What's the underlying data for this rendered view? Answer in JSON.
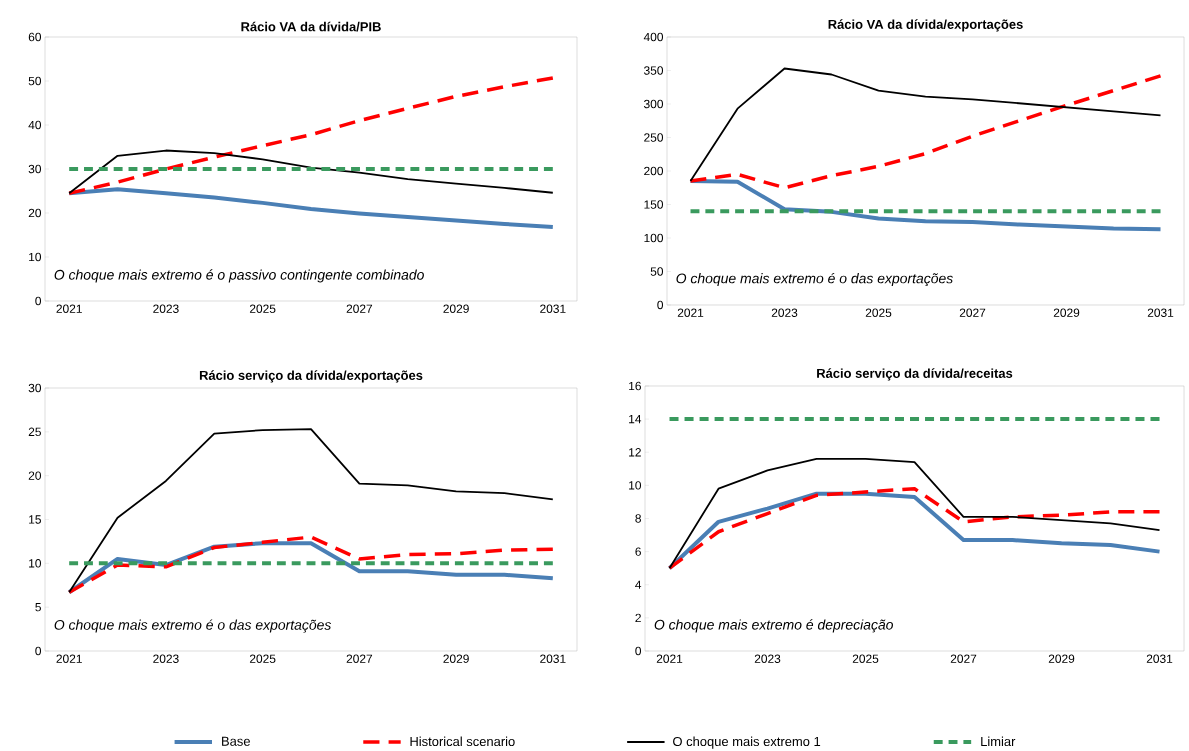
{
  "chart_data": [
    {
      "type": "line",
      "title": "Rácio VA da dívida/PIB",
      "categories": [
        "2021",
        null,
        "2023",
        null,
        "2025",
        null,
        "2027",
        null,
        "2029",
        null,
        "2031"
      ],
      "ylim": [
        0,
        60
      ],
      "yticks": [
        0,
        10,
        20,
        30,
        40,
        50,
        60
      ],
      "grid": false,
      "legend": "bottom",
      "annotations": [
        "O choque mais extremo é o passivo contingente combinado"
      ],
      "series": [
        {
          "name": "Base",
          "color": "#4a7fb5",
          "line_style": "solid",
          "values": [
            24.5,
            25.4,
            24.5,
            23.5,
            22.3,
            20.9,
            19.9,
            19.1,
            18.3,
            17.5,
            16.8
          ]
        },
        {
          "name": "Historical scenario",
          "color": "#ff0000",
          "line_style": "dashed",
          "values": [
            24.5,
            27,
            30,
            32.7,
            35.3,
            37.8,
            41,
            43.8,
            46.5,
            48.7,
            50.7
          ]
        },
        {
          "name": "O choque mais extremo 1",
          "color": "#000000",
          "line_style": "solid",
          "values": [
            24.5,
            33,
            34.2,
            33.6,
            32.2,
            30.3,
            29.2,
            27.7,
            26.7,
            25.7,
            24.6
          ]
        },
        {
          "name": "Limiar",
          "color": "#3a9a5e",
          "line_style": "dashed",
          "values": [
            30,
            30,
            30,
            30,
            30,
            30,
            30,
            30,
            30,
            30,
            30
          ]
        }
      ]
    },
    {
      "type": "line",
      "title": "Rácio VA da dívida/exportações",
      "categories": [
        "2021",
        null,
        "2023",
        null,
        "2025",
        null,
        "2027",
        null,
        "2029",
        null,
        "2031"
      ],
      "ylim": [
        0,
        400
      ],
      "yticks": [
        0,
        50,
        100,
        150,
        200,
        250,
        300,
        350,
        400
      ],
      "grid": false,
      "annotations": [
        "O choque mais extremo é o das exportações"
      ],
      "series": [
        {
          "color": "#4a7fb5",
          "line_style": "solid",
          "values": [
            185,
            184,
            143,
            139,
            129,
            125,
            124,
            120,
            117,
            114,
            113
          ]
        },
        {
          "color": "#ff0000",
          "line_style": "dashed",
          "values": [
            185,
            195,
            175,
            193,
            207,
            226,
            252,
            275,
            298,
            320,
            342
          ]
        },
        {
          "color": "#000000",
          "line_style": "solid",
          "values": [
            185,
            293,
            353,
            344,
            320,
            311,
            307,
            301,
            295,
            289,
            283
          ]
        },
        {
          "color": "#3a9a5e",
          "line_style": "dashed",
          "values": [
            140,
            140,
            140,
            140,
            140,
            140,
            140,
            140,
            140,
            140,
            140
          ]
        }
      ]
    },
    {
      "type": "line",
      "title": "Rácio serviço da dívida/exportações",
      "categories": [
        "2021",
        null,
        "2023",
        null,
        "2025",
        null,
        "2027",
        null,
        "2029",
        null,
        "2031"
      ],
      "ylim": [
        0,
        30
      ],
      "yticks": [
        0,
        5,
        10,
        15,
        20,
        25,
        30
      ],
      "grid": false,
      "annotations": [
        "O choque mais extremo é o das exportações"
      ],
      "series": [
        {
          "color": "#4a7fb5",
          "line_style": "solid",
          "values": [
            6.7,
            10.5,
            9.8,
            11.9,
            12.3,
            12.3,
            9.1,
            9.1,
            8.7,
            8.7,
            8.3
          ]
        },
        {
          "color": "#ff0000",
          "line_style": "dashed",
          "values": [
            6.7,
            9.8,
            9.6,
            11.8,
            12.4,
            13.0,
            10.5,
            11.0,
            11.1,
            11.5,
            11.6
          ]
        },
        {
          "color": "#000000",
          "line_style": "solid",
          "values": [
            6.7,
            15.2,
            19.4,
            24.8,
            25.2,
            25.3,
            19.1,
            18.9,
            18.2,
            18.0,
            17.3
          ]
        },
        {
          "color": "#3a9a5e",
          "line_style": "dashed",
          "values": [
            10,
            10,
            10,
            10,
            10,
            10,
            10,
            10,
            10,
            10,
            10
          ]
        }
      ]
    },
    {
      "type": "line",
      "title": "Rácio serviço da dívida/receitas",
      "categories": [
        "2021",
        null,
        "2023",
        null,
        "2025",
        null,
        "2027",
        null,
        "2029",
        null,
        "2031"
      ],
      "ylim": [
        0,
        16
      ],
      "yticks": [
        0,
        2,
        4,
        6,
        8,
        10,
        12,
        14,
        16
      ],
      "grid": false,
      "annotations": [
        "O choque mais extremo é depreciação"
      ],
      "series": [
        {
          "color": "#4a7fb5",
          "line_style": "solid",
          "values": [
            5.0,
            7.8,
            8.6,
            9.5,
            9.5,
            9.3,
            6.7,
            6.7,
            6.5,
            6.4,
            6.0
          ]
        },
        {
          "color": "#ff0000",
          "line_style": "dashed",
          "values": [
            5.0,
            7.2,
            8.3,
            9.4,
            9.6,
            9.8,
            7.8,
            8.1,
            8.2,
            8.4,
            8.4
          ]
        },
        {
          "color": "#000000",
          "line_style": "solid",
          "values": [
            5.0,
            9.8,
            10.9,
            11.6,
            11.6,
            11.4,
            8.1,
            8.1,
            7.9,
            7.7,
            7.3
          ]
        },
        {
          "color": "#3a9a5e",
          "line_style": "dashed",
          "values": [
            14,
            14,
            14,
            14,
            14,
            14,
            14,
            14,
            14,
            14,
            14
          ]
        }
      ]
    }
  ]
}
